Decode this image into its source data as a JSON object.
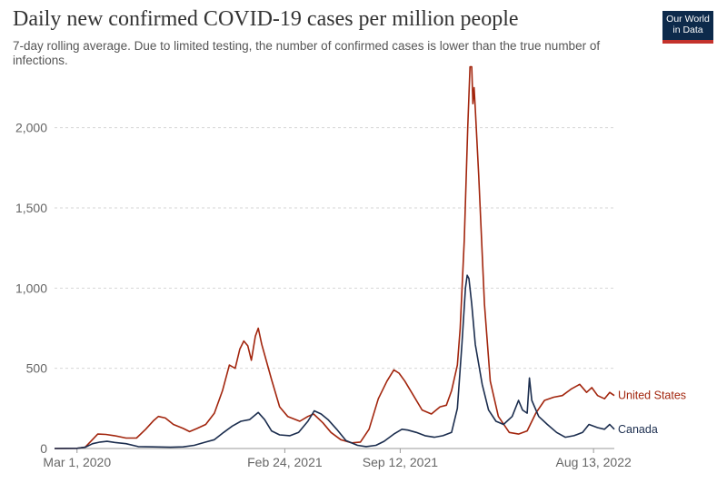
{
  "header": {
    "title": "Daily new confirmed COVID-19 cases per million people",
    "subtitle": "7-day rolling average. Due to limited testing, the number of confirmed cases is lower than the true number of infections."
  },
  "logo": {
    "line1": "Our World",
    "line2": "in Data",
    "bg_color": "#0d2a4b",
    "accent_color": "#c4322c"
  },
  "chart_data": {
    "type": "line",
    "title": "Daily new confirmed COVID-19 cases per million people",
    "subtitle": "7-day rolling average. Due to limited testing, the number of confirmed cases is lower than the true number of infections.",
    "xlabel": "",
    "ylabel": "",
    "xlim": [
      "2020-01-22",
      "2022-09-18"
    ],
    "ylim": [
      0,
      2400
    ],
    "yticks": [
      0,
      500,
      1000,
      1500,
      2000
    ],
    "ytick_labels": [
      "0",
      "500",
      "1,000",
      "1,500",
      "2,000"
    ],
    "xticks": [
      "2020-03-01",
      "2021-02-24",
      "2021-09-12",
      "2022-08-13"
    ],
    "xtick_labels": [
      "Mar 1, 2020",
      "Feb 24, 2021",
      "Sep 12, 2021",
      "Aug 13, 2022"
    ],
    "grid": "horizontal dashed",
    "legend": "labels at line ends (right)",
    "series": [
      {
        "name": "United States",
        "color": "#a2250d",
        "points": [
          [
            "2020-01-22",
            0
          ],
          [
            "2020-03-01",
            1
          ],
          [
            "2020-03-15",
            8
          ],
          [
            "2020-03-25",
            45
          ],
          [
            "2020-04-06",
            90
          ],
          [
            "2020-04-20",
            88
          ],
          [
            "2020-05-05",
            80
          ],
          [
            "2020-05-25",
            65
          ],
          [
            "2020-06-12",
            65
          ],
          [
            "2020-06-28",
            120
          ],
          [
            "2020-07-12",
            175
          ],
          [
            "2020-07-20",
            200
          ],
          [
            "2020-08-01",
            190
          ],
          [
            "2020-08-15",
            150
          ],
          [
            "2020-09-01",
            125
          ],
          [
            "2020-09-12",
            105
          ],
          [
            "2020-09-25",
            125
          ],
          [
            "2020-10-10",
            150
          ],
          [
            "2020-10-25",
            220
          ],
          [
            "2020-11-08",
            360
          ],
          [
            "2020-11-20",
            520
          ],
          [
            "2020-11-30",
            500
          ],
          [
            "2020-12-08",
            620
          ],
          [
            "2020-12-15",
            670
          ],
          [
            "2020-12-22",
            640
          ],
          [
            "2020-12-28",
            550
          ],
          [
            "2021-01-04",
            700
          ],
          [
            "2021-01-09",
            750
          ],
          [
            "2021-01-15",
            650
          ],
          [
            "2021-02-01",
            430
          ],
          [
            "2021-02-15",
            260
          ],
          [
            "2021-03-01",
            200
          ],
          [
            "2021-03-22",
            170
          ],
          [
            "2021-04-05",
            200
          ],
          [
            "2021-04-15",
            215
          ],
          [
            "2021-05-01",
            160
          ],
          [
            "2021-05-15",
            100
          ],
          [
            "2021-06-01",
            55
          ],
          [
            "2021-06-20",
            35
          ],
          [
            "2021-07-05",
            40
          ],
          [
            "2021-07-20",
            120
          ],
          [
            "2021-08-05",
            310
          ],
          [
            "2021-08-20",
            420
          ],
          [
            "2021-09-01",
            490
          ],
          [
            "2021-09-10",
            470
          ],
          [
            "2021-09-20",
            420
          ],
          [
            "2021-10-05",
            330
          ],
          [
            "2021-10-20",
            240
          ],
          [
            "2021-11-05",
            215
          ],
          [
            "2021-11-20",
            260
          ],
          [
            "2021-12-01",
            270
          ],
          [
            "2021-12-10",
            360
          ],
          [
            "2021-12-20",
            520
          ],
          [
            "2021-12-25",
            750
          ],
          [
            "2022-01-01",
            1300
          ],
          [
            "2022-01-07",
            2000
          ],
          [
            "2022-01-11",
            2380
          ],
          [
            "2022-01-14",
            2380
          ],
          [
            "2022-01-16",
            2150
          ],
          [
            "2022-01-18",
            2250
          ],
          [
            "2022-01-20",
            2120
          ],
          [
            "2022-01-26",
            1700
          ],
          [
            "2022-02-05",
            900
          ],
          [
            "2022-02-15",
            420
          ],
          [
            "2022-03-01",
            200
          ],
          [
            "2022-03-20",
            100
          ],
          [
            "2022-04-05",
            90
          ],
          [
            "2022-04-20",
            110
          ],
          [
            "2022-05-05",
            220
          ],
          [
            "2022-05-20",
            300
          ],
          [
            "2022-06-05",
            320
          ],
          [
            "2022-06-20",
            330
          ],
          [
            "2022-07-05",
            370
          ],
          [
            "2022-07-20",
            400
          ],
          [
            "2022-08-01",
            350
          ],
          [
            "2022-08-10",
            380
          ],
          [
            "2022-08-20",
            330
          ],
          [
            "2022-09-01",
            310
          ],
          [
            "2022-09-10",
            350
          ],
          [
            "2022-09-18",
            330
          ]
        ]
      },
      {
        "name": "Canada",
        "color": "#1b2d4e",
        "points": [
          [
            "2020-01-22",
            0
          ],
          [
            "2020-03-01",
            1
          ],
          [
            "2020-03-15",
            8
          ],
          [
            "2020-03-28",
            30
          ],
          [
            "2020-04-10",
            40
          ],
          [
            "2020-04-22",
            45
          ],
          [
            "2020-05-05",
            38
          ],
          [
            "2020-05-25",
            30
          ],
          [
            "2020-06-15",
            12
          ],
          [
            "2020-07-10",
            10
          ],
          [
            "2020-08-10",
            8
          ],
          [
            "2020-09-01",
            10
          ],
          [
            "2020-09-20",
            20
          ],
          [
            "2020-10-10",
            40
          ],
          [
            "2020-10-25",
            55
          ],
          [
            "2020-11-10",
            100
          ],
          [
            "2020-11-25",
            140
          ],
          [
            "2020-12-10",
            170
          ],
          [
            "2020-12-25",
            180
          ],
          [
            "2021-01-09",
            225
          ],
          [
            "2021-01-20",
            180
          ],
          [
            "2021-02-01",
            110
          ],
          [
            "2021-02-15",
            85
          ],
          [
            "2021-03-05",
            80
          ],
          [
            "2021-03-20",
            100
          ],
          [
            "2021-04-05",
            170
          ],
          [
            "2021-04-16",
            235
          ],
          [
            "2021-04-28",
            215
          ],
          [
            "2021-05-10",
            180
          ],
          [
            "2021-05-25",
            120
          ],
          [
            "2021-06-10",
            50
          ],
          [
            "2021-06-30",
            20
          ],
          [
            "2021-07-15",
            12
          ],
          [
            "2021-08-01",
            20
          ],
          [
            "2021-08-15",
            45
          ],
          [
            "2021-09-01",
            90
          ],
          [
            "2021-09-15",
            120
          ],
          [
            "2021-09-25",
            115
          ],
          [
            "2021-10-10",
            100
          ],
          [
            "2021-10-25",
            80
          ],
          [
            "2021-11-10",
            70
          ],
          [
            "2021-11-25",
            80
          ],
          [
            "2021-12-10",
            100
          ],
          [
            "2021-12-20",
            250
          ],
          [
            "2021-12-28",
            650
          ],
          [
            "2022-01-03",
            1000
          ],
          [
            "2022-01-06",
            1080
          ],
          [
            "2022-01-09",
            1060
          ],
          [
            "2022-01-14",
            900
          ],
          [
            "2022-01-20",
            650
          ],
          [
            "2022-02-01",
            400
          ],
          [
            "2022-02-12",
            240
          ],
          [
            "2022-02-25",
            170
          ],
          [
            "2022-03-10",
            150
          ],
          [
            "2022-03-25",
            200
          ],
          [
            "2022-04-05",
            300
          ],
          [
            "2022-04-12",
            240
          ],
          [
            "2022-04-20",
            220
          ],
          [
            "2022-04-24",
            440
          ],
          [
            "2022-04-28",
            300
          ],
          [
            "2022-05-10",
            200
          ],
          [
            "2022-05-25",
            150
          ],
          [
            "2022-06-10",
            100
          ],
          [
            "2022-06-25",
            70
          ],
          [
            "2022-07-10",
            80
          ],
          [
            "2022-07-25",
            100
          ],
          [
            "2022-08-05",
            150
          ],
          [
            "2022-08-20",
            130
          ],
          [
            "2022-09-01",
            120
          ],
          [
            "2022-09-10",
            150
          ],
          [
            "2022-09-18",
            120
          ]
        ]
      }
    ]
  }
}
